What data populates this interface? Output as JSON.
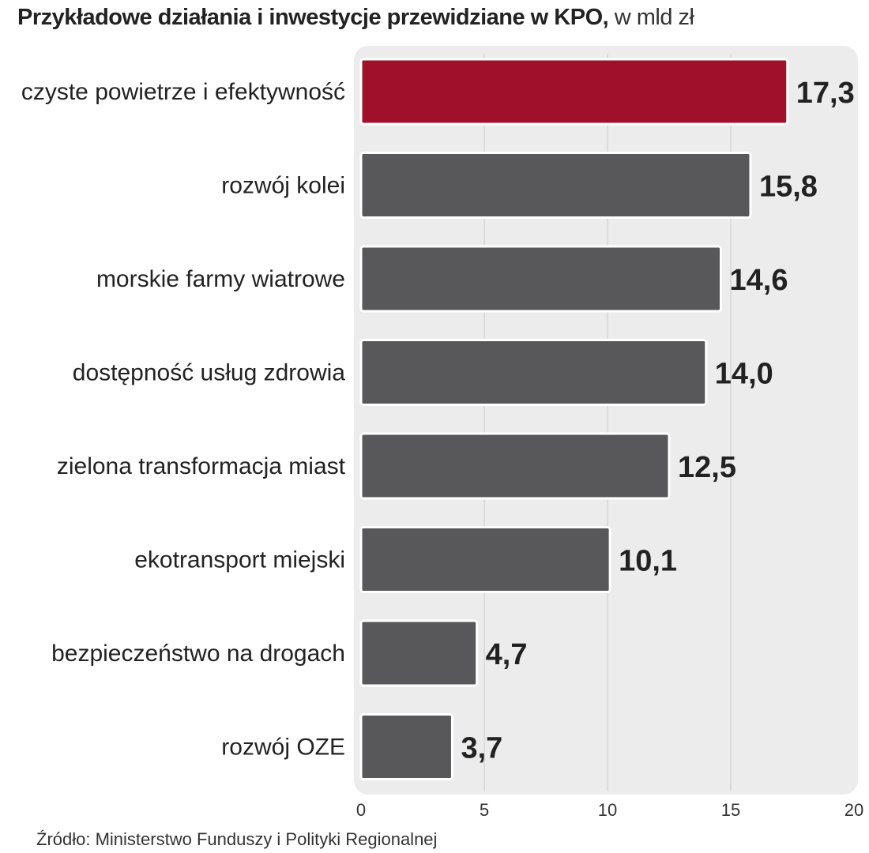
{
  "header": {
    "title": "Przykładowe działania i inwestycje przewidziane w KPO,",
    "unit": " w mld zł"
  },
  "source": "Źródło: Ministerstwo Funduszy i Polityki Regionalnej",
  "colors": {
    "highlight": "#a0102a",
    "bar": "#58585a",
    "panel": "#ececec",
    "text": "#222222"
  },
  "chart_data": {
    "type": "bar",
    "orientation": "horizontal",
    "categories": [
      "czyste powietrze i efektywność",
      "rozwój kolei",
      "morskie farmy wiatrowe",
      "dostępność usług zdrowia",
      "zielona transformacja miast",
      "ekotransport miejski",
      "bezpieczeństwo na drogach",
      "rozwój OZE"
    ],
    "values": [
      17.3,
      15.8,
      14.6,
      14.0,
      12.5,
      10.1,
      4.7,
      3.7
    ],
    "value_labels": [
      "17,3",
      "15,8",
      "14,6",
      "14,0",
      "12,5",
      "10,1",
      "4,7",
      "3,7"
    ],
    "highlight_index": 0,
    "xlim": [
      0,
      20
    ],
    "xticks": [
      0,
      5,
      10,
      15,
      20
    ],
    "grid": true,
    "legend": "none"
  }
}
